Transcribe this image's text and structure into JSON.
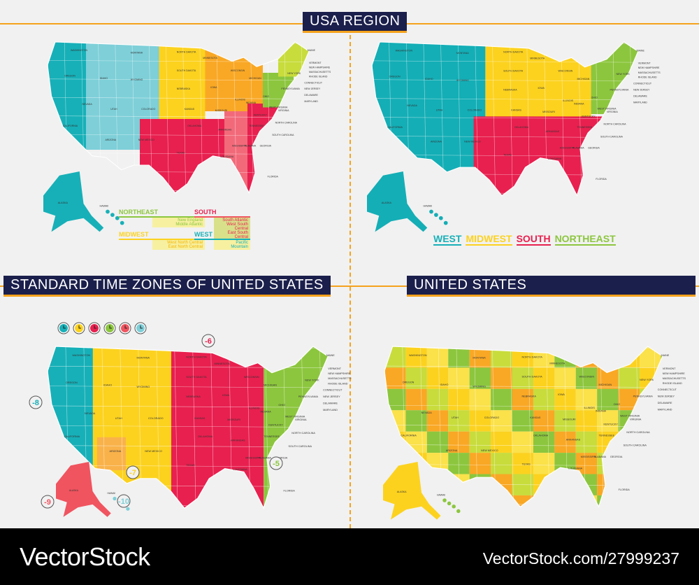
{
  "headers": {
    "usa_region": "USA REGION",
    "time_zones": "STANDARD TIME ZONES OF UNITED STATES",
    "united_states": "UNITED  STATES"
  },
  "region_legend": {
    "northeast": {
      "title": "NORTHEAST",
      "subs": [
        "New England",
        "Middle Atlantic"
      ],
      "color": "#8cc63e"
    },
    "south": {
      "title": "SOUTH",
      "subs": [
        "South Atlantic",
        "West South Central",
        "East South Central"
      ],
      "color": "#e8204f"
    },
    "midwest": {
      "title": "MIDWEST",
      "subs": [
        "West North Central",
        "East North Central"
      ],
      "color": "#fcd21f"
    },
    "west": {
      "title": "WEST",
      "subs": [
        "Pacific",
        "Mountain"
      ],
      "color": "#17b0b8"
    }
  },
  "region_key": [
    "WEST",
    "MIDWEST",
    "SOUTH",
    "NORTHEAST"
  ],
  "time_zone_offsets": [
    "-8",
    "-7",
    "-6",
    "-5",
    "-9",
    "-10"
  ],
  "clock_icons": [
    "#17b0b8",
    "#fcd21f",
    "#e8204f",
    "#8cc63e",
    "#f0545f",
    "#7ecfd8"
  ],
  "states": [
    "WASHINGTON",
    "OREGON",
    "CALIFORNIA",
    "NEVADA",
    "IDAHO",
    "MONTANA",
    "WYOMING",
    "UTAH",
    "COLORADO",
    "ARIZONA",
    "NEW MEXICO",
    "NORTH DAKOTA",
    "SOUTH DAKOTA",
    "NEBRASKA",
    "KANSAS",
    "OKLAHOMA",
    "TEXAS",
    "MINNESOTA",
    "IOWA",
    "MISSOURI",
    "ARKANSAS",
    "LOUISIANA",
    "WISCONSIN",
    "ILLINOIS",
    "MICHIGAN",
    "INDIANA",
    "OHIO",
    "KENTUCKY",
    "TENNESSEE",
    "MISSISSIPPI",
    "ALABAMA",
    "GEORGIA",
    "FLORIDA",
    "SOUTH CAROLINA",
    "NORTH CAROLINA",
    "VIRGINIA",
    "WEST VIRGINIA",
    "PENNSYLVANIA",
    "NEW YORK",
    "MAINE",
    "VERMONT",
    "NEW HAMPSHIRE",
    "MASSACHUSETTS",
    "RHODE ISLAND",
    "CONNECTICUT",
    "NEW JERSEY",
    "DELAWARE",
    "MARYLAND",
    "ALASKA",
    "HAWAII"
  ],
  "footer": {
    "logo": "VectorStock",
    "image_id": "VectorStock.com/27999237"
  }
}
